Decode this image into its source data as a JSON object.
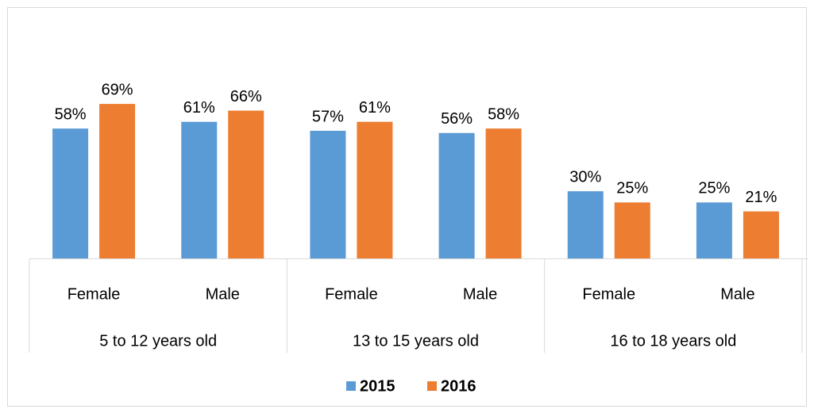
{
  "chart_data": {
    "type": "bar",
    "categories": [
      "Female",
      "Male",
      "Female",
      "Male",
      "Female",
      "Male"
    ],
    "groups": [
      "5 to 12 years old",
      "13 to 15 years old",
      "16 to 18 years old"
    ],
    "series": [
      {
        "name": "2015",
        "color": "#5b9bd5",
        "values": [
          58,
          61,
          57,
          56,
          30,
          25
        ],
        "value_labels": [
          "58%",
          "61%",
          "57%",
          "56%",
          "30%",
          "25%"
        ]
      },
      {
        "name": "2016",
        "color": "#ed7d31",
        "values": [
          69,
          66,
          61,
          58,
          25,
          21
        ],
        "value_labels": [
          "69%",
          "66%",
          "61%",
          "58%",
          "25%",
          "21%"
        ]
      }
    ],
    "ylim": [
      0,
      80
    ],
    "legend": "bottom"
  }
}
